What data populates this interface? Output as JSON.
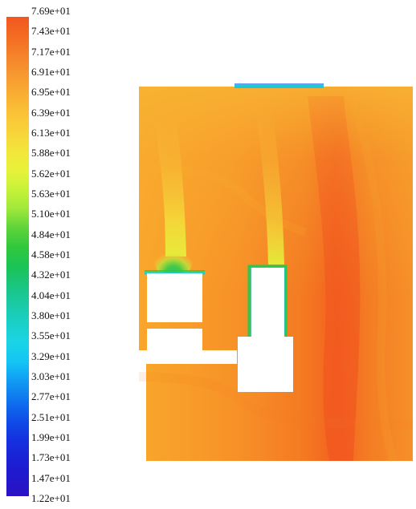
{
  "legend": {
    "values": [
      "7.69e+01",
      "7.43e+01",
      "7.17e+01",
      "6.91e+01",
      "6.95e+01",
      "6.39e+01",
      "6.13e+01",
      "5.88e+01",
      "5.62e+01",
      "5.63e+01",
      "5.10e+01",
      "4.84e+01",
      "4.58e+01",
      "4.32e+01",
      "4.04e+01",
      "3.80e+01",
      "3.55e+01",
      "3.29e+01",
      "3.03e+01",
      "2.77e+01",
      "2.51e+01",
      "1.99e+01",
      "1.73e+01",
      "1.47e+01",
      "1.22e+01"
    ]
  },
  "colors": {
    "field_base": "#f7931f",
    "field_light": "#f8a92a",
    "field_hot": "#f2561f",
    "field_yellow": "#f3d93a",
    "obstacle": "#ffffff",
    "boundary_green": "#29c94a",
    "boundary_cyan": "#1fc7d9",
    "boundary_blue": "#2a62e8"
  }
}
